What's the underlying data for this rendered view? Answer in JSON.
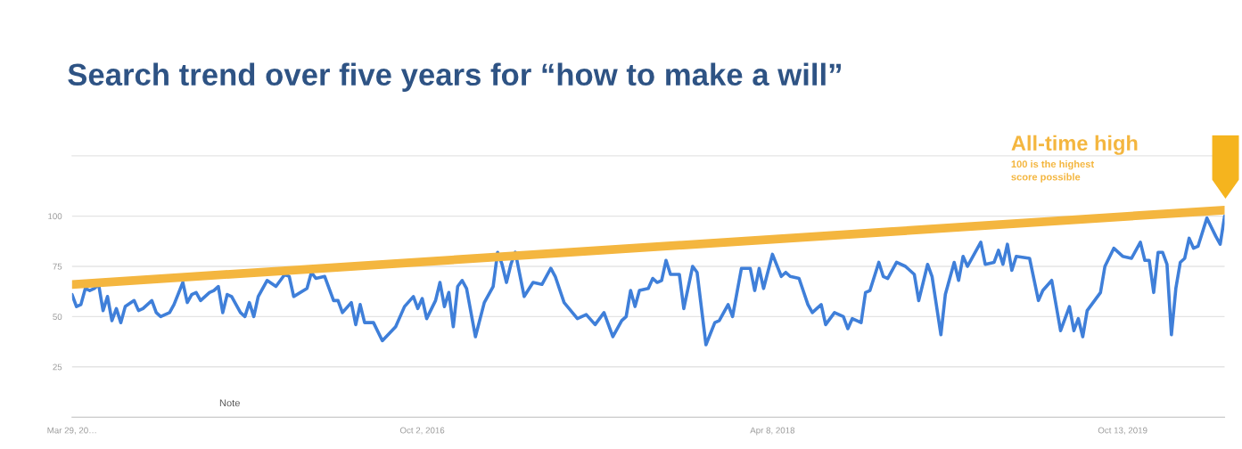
{
  "chart_data": {
    "type": "line",
    "title": "Search trend over five years for “how to make a will”",
    "annotations": [
      "Note",
      "All-time high",
      "100 is the highest\nscore possible"
    ],
    "xlim": [
      "2015-03-29",
      "2020-03-22"
    ],
    "xticks": [
      {
        "value": "2015-03-29",
        "label": "Mar 29, 20…"
      },
      {
        "value": "2016-10-02",
        "label": "Oct 2, 2016"
      },
      {
        "value": "2018-04-08",
        "label": "Apr 8, 2018"
      },
      {
        "value": "2019-10-13",
        "label": "Oct 13, 2019"
      }
    ],
    "ylim": [
      0,
      130
    ],
    "yticks": [
      25,
      50,
      75,
      100
    ],
    "grid": "y",
    "marker": "none",
    "line_style": "solid",
    "series": [
      {
        "type": "line",
        "color": "#f4b63f",
        "x": [
          "2015-03-29",
          "2020-03-22"
        ],
        "values": [
          66,
          103
        ]
      },
      {
        "color": "#3f7fd9",
        "x": [
          "2015-03-29",
          "2015-04-05",
          "2015-04-12",
          "2015-04-19",
          "2015-04-26",
          "2015-05-03",
          "2015-05-10",
          "2015-05-17",
          "2015-05-24",
          "2015-05-31",
          "2015-06-07",
          "2015-06-14",
          "2015-06-21",
          "2015-07-05",
          "2015-07-12",
          "2015-07-19",
          "2015-08-02",
          "2015-08-09",
          "2015-08-16",
          "2015-08-30",
          "2015-09-06",
          "2015-09-20",
          "2015-09-27",
          "2015-10-04",
          "2015-10-11",
          "2015-10-18",
          "2015-11-01",
          "2015-11-08",
          "2015-11-15",
          "2015-11-22",
          "2015-11-29",
          "2015-12-06",
          "2015-12-20",
          "2015-12-27",
          "2016-01-03",
          "2016-01-10",
          "2016-01-17",
          "2016-01-31",
          "2016-02-14",
          "2016-02-28",
          "2016-03-06",
          "2016-03-13",
          "2016-04-03",
          "2016-04-10",
          "2016-04-17",
          "2016-05-01",
          "2016-05-15",
          "2016-05-22",
          "2016-05-29",
          "2016-06-12",
          "2016-06-19",
          "2016-06-26",
          "2016-07-03",
          "2016-07-17",
          "2016-07-31",
          "2016-08-21",
          "2016-09-04",
          "2016-09-18",
          "2016-09-25",
          "2016-10-02",
          "2016-10-09",
          "2016-10-23",
          "2016-10-30",
          "2016-11-06",
          "2016-11-13",
          "2016-11-20",
          "2016-11-27",
          "2016-12-04",
          "2016-12-11",
          "2016-12-25",
          "2017-01-08",
          "2017-01-22",
          "2017-01-29",
          "2017-02-05",
          "2017-02-12",
          "2017-02-19",
          "2017-02-26",
          "2017-03-12",
          "2017-03-26",
          "2017-04-09",
          "2017-04-23",
          "2017-04-30",
          "2017-05-14",
          "2017-06-04",
          "2017-06-18",
          "2017-07-02",
          "2017-07-16",
          "2017-07-30",
          "2017-08-13",
          "2017-08-20",
          "2017-08-27",
          "2017-09-03",
          "2017-09-10",
          "2017-09-24",
          "2017-10-01",
          "2017-10-08",
          "2017-10-15",
          "2017-10-22",
          "2017-10-29",
          "2017-11-12",
          "2017-11-19",
          "2017-12-03",
          "2017-12-10",
          "2017-12-24",
          "2018-01-07",
          "2018-01-14",
          "2018-01-28",
          "2018-02-04",
          "2018-02-18",
          "2018-03-04",
          "2018-03-11",
          "2018-03-18",
          "2018-03-25",
          "2018-04-08",
          "2018-04-22",
          "2018-04-29",
          "2018-05-06",
          "2018-05-20",
          "2018-06-03",
          "2018-06-10",
          "2018-06-24",
          "2018-07-01",
          "2018-07-15",
          "2018-07-29",
          "2018-08-05",
          "2018-08-12",
          "2018-08-26",
          "2018-09-02",
          "2018-09-09",
          "2018-09-23",
          "2018-09-30",
          "2018-10-07",
          "2018-10-21",
          "2018-11-04",
          "2018-11-18",
          "2018-11-25",
          "2018-12-09",
          "2018-12-16",
          "2018-12-30",
          "2019-01-06",
          "2019-01-20",
          "2019-01-27",
          "2019-02-03",
          "2019-02-10",
          "2019-02-17",
          "2019-03-03",
          "2019-03-10",
          "2019-03-24",
          "2019-03-31",
          "2019-04-07",
          "2019-04-14",
          "2019-04-21",
          "2019-04-28",
          "2019-05-19",
          "2019-06-02",
          "2019-06-09",
          "2019-06-23",
          "2019-07-07",
          "2019-07-21",
          "2019-07-28",
          "2019-08-04",
          "2019-08-11",
          "2019-08-18",
          "2019-09-08",
          "2019-09-15",
          "2019-09-29",
          "2019-10-13",
          "2019-10-27",
          "2019-11-10",
          "2019-11-17",
          "2019-11-24",
          "2019-12-01",
          "2019-12-08",
          "2019-12-15",
          "2019-12-22",
          "2019-12-29",
          "2020-01-05",
          "2020-01-12",
          "2020-01-19",
          "2020-01-26",
          "2020-02-02",
          "2020-02-09",
          "2020-02-23",
          "2020-03-08",
          "2020-03-15",
          "2020-03-22"
        ],
        "values": [
          61,
          55,
          56,
          64,
          63,
          64,
          66,
          53,
          60,
          48,
          54,
          47,
          55,
          58,
          53,
          54,
          58,
          52,
          50,
          52,
          56,
          67,
          57,
          61,
          62,
          58,
          62,
          63,
          65,
          52,
          61,
          60,
          52,
          50,
          57,
          50,
          60,
          68,
          65,
          71,
          70,
          60,
          64,
          72,
          69,
          70,
          58,
          58,
          52,
          57,
          46,
          56,
          47,
          47,
          38,
          45,
          55,
          60,
          54,
          59,
          49,
          58,
          67,
          55,
          62,
          45,
          65,
          68,
          64,
          40,
          57,
          65,
          82,
          76,
          67,
          76,
          82,
          60,
          67,
          66,
          74,
          70,
          57,
          49,
          51,
          46,
          52,
          40,
          48,
          50,
          63,
          55,
          63,
          64,
          69,
          67,
          68,
          78,
          71,
          71,
          54,
          75,
          72,
          36,
          47,
          48,
          56,
          50,
          74,
          74,
          63,
          74,
          64,
          81,
          70,
          72,
          70,
          69,
          56,
          52,
          56,
          46,
          52,
          50,
          44,
          49,
          47,
          62,
          63,
          77,
          70,
          69,
          77,
          75,
          71,
          58,
          76,
          70,
          41,
          61,
          77,
          68,
          80,
          75,
          79,
          87,
          76,
          77,
          83,
          76,
          86,
          73,
          80,
          79,
          58,
          63,
          68,
          43,
          55,
          43,
          49,
          40,
          53,
          62,
          75,
          84,
          80,
          79,
          87,
          78,
          78,
          62,
          82,
          82,
          76,
          41,
          64,
          77,
          79,
          89,
          84,
          85,
          99,
          90,
          86,
          100
        ]
      }
    ]
  }
}
